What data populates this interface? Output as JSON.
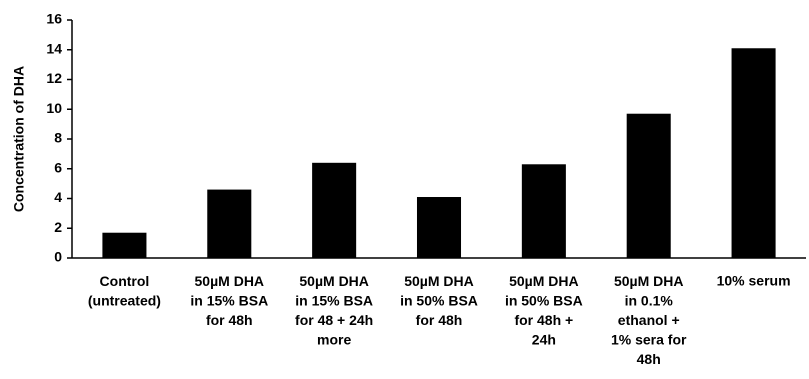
{
  "chart_data": {
    "type": "bar",
    "y_label": "Concentration of DHA",
    "categories": [
      "Control\n(untreated)",
      "50µM DHA\nin 15% BSA\nfor 48h",
      "50µM DHA\nin 15% BSA\nfor 48 + 24h\nmore",
      "50µM DHA\nin 50% BSA\nfor 48h",
      "50µM DHA\nin 50% BSA\nfor 48h +\n24h",
      "50µM DHA\nin 0.1%\nethanol +\n1% sera for\n48h",
      "10% serum"
    ],
    "values": [
      1.7,
      4.6,
      6.4,
      4.1,
      6.3,
      9.7,
      14.1
    ],
    "color": "#000000",
    "ylim": [
      0,
      16
    ],
    "yticks": [
      0,
      2,
      4,
      6,
      8,
      10,
      12,
      14,
      16
    ],
    "grid": false
  }
}
